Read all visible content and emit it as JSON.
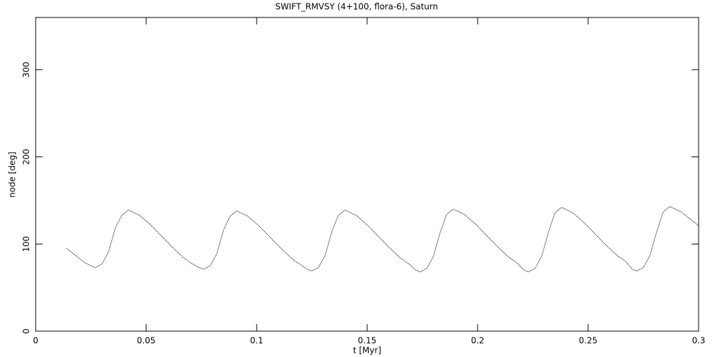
{
  "chart_data": {
    "type": "line",
    "title": "SWIFT_RMVSY (4+100, flora-6), Saturn",
    "x_label": "t [Myr]",
    "y_label": "node [deg]",
    "xlim": [
      0,
      0.3
    ],
    "ylim": [
      0,
      360
    ],
    "xticks": [
      0,
      0.05,
      0.1,
      0.15,
      0.2,
      0.25,
      0.3
    ],
    "yticks": [
      0,
      100,
      200,
      300
    ],
    "series": [
      {
        "color": "#000000",
        "x": [
          0.014,
          0.018,
          0.022,
          0.025,
          0.027,
          0.03,
          0.033,
          0.036,
          0.039,
          0.042,
          0.047,
          0.052,
          0.057,
          0.062,
          0.067,
          0.071,
          0.074,
          0.076,
          0.079,
          0.082,
          0.085,
          0.088,
          0.091,
          0.096,
          0.101,
          0.106,
          0.111,
          0.116,
          0.12,
          0.123,
          0.125,
          0.128,
          0.131,
          0.134,
          0.137,
          0.14,
          0.145,
          0.15,
          0.155,
          0.16,
          0.165,
          0.169,
          0.172,
          0.174,
          0.177,
          0.18,
          0.183,
          0.186,
          0.189,
          0.194,
          0.199,
          0.204,
          0.209,
          0.214,
          0.218,
          0.221,
          0.223,
          0.226,
          0.229,
          0.232,
          0.235,
          0.238,
          0.243,
          0.248,
          0.253,
          0.258,
          0.263,
          0.267,
          0.27,
          0.272,
          0.275,
          0.278,
          0.281,
          0.284,
          0.287,
          0.292,
          0.297,
          0.3
        ],
        "values": [
          95,
          87,
          79,
          75,
          73,
          77,
          91,
          118,
          133,
          139,
          133,
          122,
          109,
          96,
          84,
          77,
          73,
          71,
          75,
          89,
          116,
          132,
          138,
          132,
          121,
          108,
          95,
          83,
          76,
          71,
          69,
          73,
          87,
          114,
          133,
          139,
          133,
          122,
          109,
          96,
          84,
          77,
          70,
          68,
          72,
          86,
          113,
          134,
          140,
          134,
          123,
          110,
          97,
          85,
          78,
          70,
          68,
          72,
          86,
          113,
          136,
          142,
          136,
          125,
          112,
          99,
          87,
          80,
          71,
          69,
          73,
          87,
          114,
          137,
          143,
          137,
          127,
          121
        ]
      }
    ]
  }
}
